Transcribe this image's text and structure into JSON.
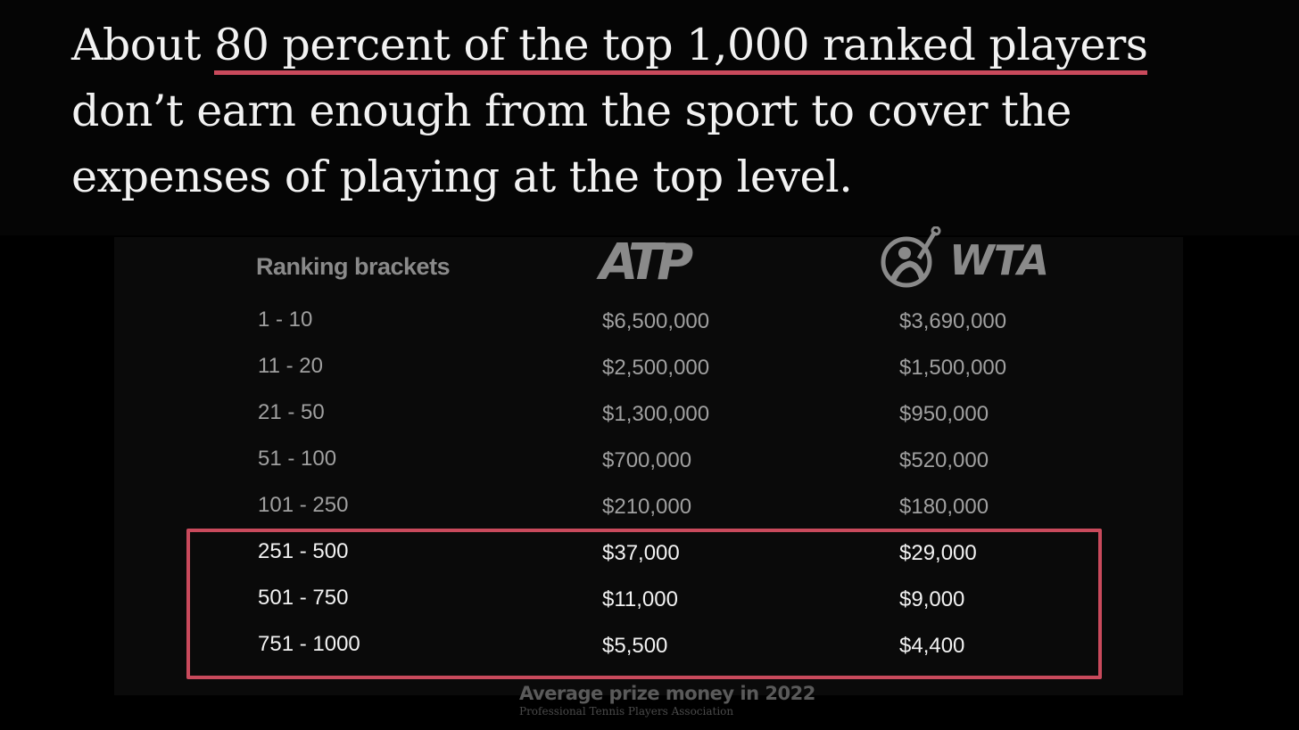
{
  "headline": {
    "line1_prefix": "About ",
    "line1_highlight": "80 percent of the top 1,000 ranked players",
    "line2": "don’t earn enough from the sport to cover the",
    "line3": "expenses of playing at the top level."
  },
  "table": {
    "col_bracket": "Ranking brackets",
    "atp_logo_text": "ATP",
    "wta_logo_text": "WTA",
    "wta_logo_icon": "tennis-player-icon",
    "highlight_color": "#c94a5c"
  },
  "chart_data": {
    "type": "table",
    "columns": [
      "Ranking brackets",
      "ATP",
      "WTA"
    ],
    "rows": [
      {
        "bracket": "1 - 10",
        "atp": "$6,500,000",
        "wta": "$3,690,000",
        "highlighted": false
      },
      {
        "bracket": "11 - 20",
        "atp": "$2,500,000",
        "wta": "$1,500,000",
        "highlighted": false
      },
      {
        "bracket": "21 - 50",
        "atp": "$1,300,000",
        "wta": "$950,000",
        "highlighted": false
      },
      {
        "bracket": "51 - 100",
        "atp": "$700,000",
        "wta": "$520,000",
        "highlighted": false
      },
      {
        "bracket": "101 - 250",
        "atp": "$210,000",
        "wta": "$180,000",
        "highlighted": false
      },
      {
        "bracket": "251 - 500",
        "atp": "$37,000",
        "wta": "$29,000",
        "highlighted": true
      },
      {
        "bracket": "501 - 750",
        "atp": "$11,000",
        "wta": "$9,000",
        "highlighted": true
      },
      {
        "bracket": "751 - 1000",
        "atp": "$5,500",
        "wta": "$4,400",
        "highlighted": true
      }
    ],
    "title": "Average prize money in 2022",
    "source": "Professional Tennis Players Association"
  }
}
